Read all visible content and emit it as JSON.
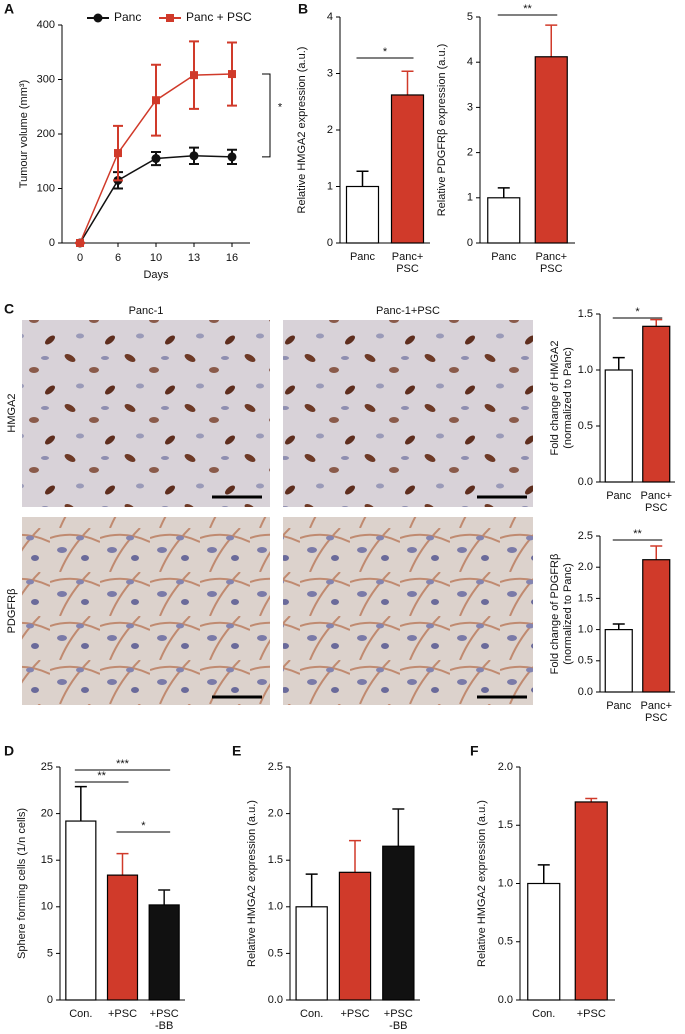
{
  "panels": [
    "A",
    "B",
    "C",
    "D",
    "E",
    "F"
  ],
  "images": {
    "columns": [
      "Panc-1",
      "Panc-1+PSC"
    ],
    "rows": [
      "HMGA2",
      "PDGFRβ"
    ]
  },
  "chart_data": [
    {
      "type": "line",
      "xlabel": "Days",
      "ylabel": "Tumour volume (mm³)",
      "categories": [
        "0",
        "6",
        "10",
        "13",
        "16"
      ],
      "ylim": [
        0,
        400
      ],
      "yticks": [
        0,
        100,
        200,
        300,
        400
      ],
      "annotations": [
        "*"
      ],
      "series": [
        {
          "name": "Panc",
          "color": "#111111",
          "marker": "circle",
          "values": [
            0,
            115,
            155,
            160,
            158
          ],
          "errors": [
            0,
            15,
            12,
            15,
            13
          ]
        },
        {
          "name": "Panc + PSC",
          "color": "#d03a2a",
          "marker": "square",
          "values": [
            0,
            165,
            262,
            308,
            310
          ],
          "errors": [
            0,
            50,
            65,
            62,
            58
          ]
        }
      ]
    },
    {
      "type": "bar",
      "ylabel": [
        "Relative  HMGA2 expression (a.u.)"
      ],
      "categories": [
        "Panc",
        "Panc+\nPSC"
      ],
      "values": [
        1.0,
        2.62
      ],
      "errors": [
        0.27,
        0.42
      ],
      "colors": [
        "#ffffff",
        "#d03a2a"
      ],
      "ylim": [
        0,
        4
      ],
      "yticks": [
        0,
        1,
        2,
        3,
        4
      ],
      "annotations": [
        "*"
      ]
    },
    {
      "type": "bar",
      "ylabel": [
        "Relative  PDGFRβ expression (a.u.)"
      ],
      "categories": [
        "Panc",
        "Panc+\nPSC"
      ],
      "values": [
        1.0,
        4.12
      ],
      "errors": [
        0.22,
        0.7
      ],
      "colors": [
        "#ffffff",
        "#d03a2a"
      ],
      "ylim": [
        0,
        5
      ],
      "yticks": [
        0,
        1,
        2,
        3,
        4,
        5
      ],
      "annotations": [
        "**"
      ]
    },
    {
      "type": "bar",
      "ylabel": [
        "Fold change of HMGA2",
        "(normalized to Panc)"
      ],
      "categories": [
        "Panc",
        "Panc+\nPSC"
      ],
      "values": [
        1.0,
        1.39
      ],
      "errors": [
        0.11,
        0.06
      ],
      "colors": [
        "#ffffff",
        "#d03a2a"
      ],
      "ylim": [
        0,
        1.5
      ],
      "yticks": [
        {
          "value": 0,
          "label": "0.0"
        },
        0.5,
        {
          "value": 1,
          "label": "1.0"
        },
        1.5
      ],
      "annotations": [
        "*"
      ]
    },
    {
      "type": "bar",
      "ylabel": [
        "Fold change of PDGFRβ",
        "(normalized to Panc)"
      ],
      "categories": [
        "Panc",
        "Panc+\nPSC"
      ],
      "values": [
        1.0,
        2.12
      ],
      "errors": [
        0.09,
        0.22
      ],
      "colors": [
        "#ffffff",
        "#d03a2a"
      ],
      "ylim": [
        0,
        2.5
      ],
      "yticks": [
        {
          "value": 0,
          "label": "0.0"
        },
        0.5,
        {
          "value": 1,
          "label": "1.0"
        },
        1.5,
        {
          "value": 2,
          "label": "2.0"
        },
        2.5
      ],
      "annotations": [
        "**"
      ]
    },
    {
      "type": "bar",
      "ylabel": [
        "Sphere forming cells (1/n cells)"
      ],
      "categories": [
        "Con.",
        "+PSC",
        "+PSC\n-BB"
      ],
      "values": [
        19.2,
        13.4,
        10.2
      ],
      "errors": [
        3.7,
        2.3,
        1.6
      ],
      "colors": [
        "#ffffff",
        "#d03a2a",
        "#111111"
      ],
      "ylim": [
        0,
        25
      ],
      "yticks": [
        0,
        5,
        10,
        15,
        20,
        25
      ],
      "annotations": [
        "**",
        "***",
        "*"
      ]
    },
    {
      "type": "bar",
      "ylabel": [
        "Relative  HMGA2 expression (a.u.)"
      ],
      "categories": [
        "Con.",
        "+PSC",
        "+PSC\n-BB"
      ],
      "values": [
        1.0,
        1.37,
        1.65
      ],
      "errors": [
        0.35,
        0.34,
        0.4
      ],
      "colors": [
        "#ffffff",
        "#d03a2a",
        "#111111"
      ],
      "ylim": [
        0,
        2.5
      ],
      "yticks": [
        {
          "value": 0,
          "label": "0.0"
        },
        0.5,
        {
          "value": 1,
          "label": "1.0"
        },
        1.5,
        {
          "value": 2,
          "label": "2.0"
        },
        2.5
      ],
      "annotations": []
    },
    {
      "type": "bar",
      "ylabel": [
        "Relative  HMGA2 expression (a.u.)"
      ],
      "categories": [
        "Con.",
        "+PSC"
      ],
      "values": [
        1.0,
        1.7
      ],
      "errors": [
        0.16,
        0.03
      ],
      "colors": [
        "#ffffff",
        "#d03a2a"
      ],
      "ylim": [
        0,
        2
      ],
      "yticks": [
        {
          "value": 0,
          "label": "0.0"
        },
        0.5,
        {
          "value": 1,
          "label": "1.0"
        },
        1.5,
        {
          "value": 2,
          "label": "2.0"
        }
      ],
      "annotations": []
    }
  ]
}
